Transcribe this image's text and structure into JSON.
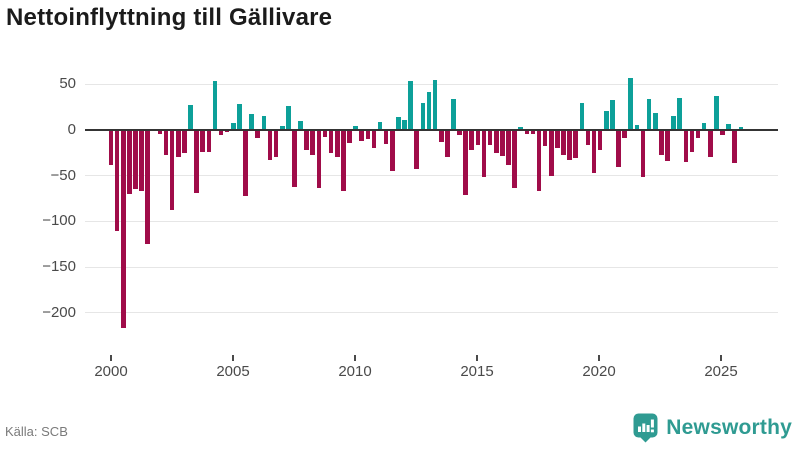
{
  "title": "Nettoinflyttning till Gällivare",
  "footer": {
    "source": "Källa: SCB",
    "brand": "Newsworthy"
  },
  "colors": {
    "positive": "#0da099",
    "negative": "#a00c49",
    "grid": "#e6e6e6",
    "axis": "#343434",
    "title_text": "#1b1b1b",
    "tick_text": "#4a4a4a",
    "source_text": "#7a7a7a",
    "brand_teal": "#2f9b92",
    "background": "#ffffff"
  },
  "chart_data": {
    "type": "bar",
    "title": "Nettoinflyttning till Gällivare",
    "xlabel": "",
    "ylabel": "",
    "x_unit": "quarter",
    "legend": "none",
    "grid": "horizontal",
    "ylim": [
      -240,
      60
    ],
    "yticks_values": [
      50,
      0,
      -50,
      -100,
      -150,
      -200
    ],
    "yticks_labels": [
      "50",
      "0",
      "−50",
      "−100",
      "−150",
      "−200"
    ],
    "xticks_values": [
      2000,
      2005,
      2010,
      2015,
      2020,
      2025
    ],
    "xticks_labels": [
      "2000",
      "2005",
      "2010",
      "2015",
      "2020",
      "2025"
    ],
    "categories": [
      "2000Q1",
      "2000Q2",
      "2000Q3",
      "2000Q4",
      "2001Q1",
      "2001Q2",
      "2001Q3",
      "2001Q4",
      "2002Q1",
      "2002Q2",
      "2002Q3",
      "2002Q4",
      "2003Q1",
      "2003Q2",
      "2003Q3",
      "2003Q4",
      "2004Q1",
      "2004Q2",
      "2004Q3",
      "2004Q4",
      "2005Q1",
      "2005Q2",
      "2005Q3",
      "2005Q4",
      "2006Q1",
      "2006Q2",
      "2006Q3",
      "2006Q4",
      "2007Q1",
      "2007Q2",
      "2007Q3",
      "2007Q4",
      "2008Q1",
      "2008Q2",
      "2008Q3",
      "2008Q4",
      "2009Q1",
      "2009Q2",
      "2009Q3",
      "2009Q4",
      "2010Q1",
      "2010Q2",
      "2010Q3",
      "2010Q4",
      "2011Q1",
      "2011Q2",
      "2011Q3",
      "2011Q4",
      "2012Q1",
      "2012Q2",
      "2012Q3",
      "2012Q4",
      "2013Q1",
      "2013Q2",
      "2013Q3",
      "2013Q4",
      "2014Q1",
      "2014Q2",
      "2014Q3",
      "2014Q4",
      "2015Q1",
      "2015Q2",
      "2015Q3",
      "2015Q4",
      "2016Q1",
      "2016Q2",
      "2016Q3",
      "2016Q4",
      "2017Q1",
      "2017Q2",
      "2017Q3",
      "2017Q4",
      "2018Q1",
      "2018Q2",
      "2018Q3",
      "2018Q4",
      "2019Q1",
      "2019Q2",
      "2019Q3",
      "2019Q4",
      "2020Q1",
      "2020Q2",
      "2020Q3",
      "2020Q4",
      "2021Q1",
      "2021Q2",
      "2021Q3",
      "2021Q4",
      "2022Q1",
      "2022Q2",
      "2022Q3",
      "2022Q4",
      "2023Q1",
      "2023Q2",
      "2023Q3",
      "2023Q4",
      "2024Q1",
      "2024Q2",
      "2024Q3",
      "2024Q4",
      "2025Q1",
      "2025Q2",
      "2025Q3",
      "2025Q4"
    ],
    "values": [
      -38,
      -110,
      -217,
      -70,
      -65,
      -67,
      -125,
      -1,
      -4,
      -27,
      -87,
      -29,
      -25,
      27,
      -69,
      -24,
      -24,
      54,
      -5,
      -2,
      8,
      28,
      -72,
      17,
      -9,
      15,
      -33,
      -30,
      4,
      26,
      -62,
      10,
      -22,
      -27,
      -63,
      -8,
      -25,
      -29,
      -67,
      -14,
      4,
      -12,
      -10,
      -20,
      9,
      -15,
      -45,
      14,
      11,
      54,
      -43,
      30,
      42,
      55,
      -13,
      -29,
      34,
      -5,
      -71,
      -22,
      -16,
      -51,
      -16,
      -25,
      -28,
      -38,
      -63,
      3,
      -4,
      -4,
      -67,
      -18,
      -50,
      -20,
      -27,
      -33,
      -31,
      29,
      -16,
      -47,
      -22,
      21,
      33,
      -40,
      -9,
      57,
      5,
      -51,
      34,
      19,
      -27,
      -34,
      15,
      35,
      -35,
      -24,
      -9,
      8,
      -30,
      37,
      -5,
      7,
      -36,
      3
    ]
  }
}
